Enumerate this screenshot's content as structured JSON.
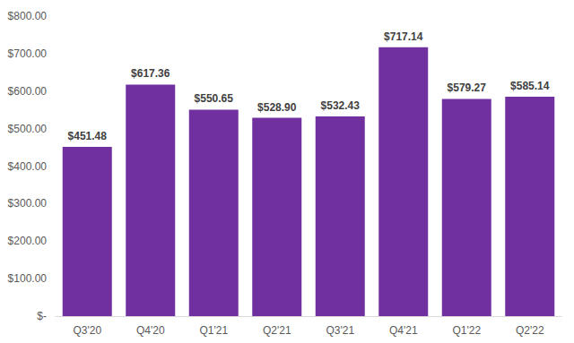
{
  "chart_data": {
    "type": "bar",
    "categories": [
      "Q3'20",
      "Q4'20",
      "Q1'21",
      "Q2'21",
      "Q3'21",
      "Q4'21",
      "Q1'22",
      "Q2'22"
    ],
    "values": [
      451.48,
      617.36,
      550.65,
      528.9,
      532.43,
      717.14,
      579.27,
      585.14
    ],
    "value_labels": [
      "$451.48",
      "$617.36",
      "$550.65",
      "$528.90",
      "$532.43",
      "$717.14",
      "$579.27",
      "$585.14"
    ],
    "color": "#7030a0",
    "ylim": [
      0,
      800
    ],
    "yticks": [
      {
        "value": 0,
        "label": "$-"
      },
      {
        "value": 100,
        "label": "$100.00"
      },
      {
        "value": 200,
        "label": "$200.00"
      },
      {
        "value": 300,
        "label": "$300.00"
      },
      {
        "value": 400,
        "label": "$400.00"
      },
      {
        "value": 500,
        "label": "$500.00"
      },
      {
        "value": 600,
        "label": "$600.00"
      },
      {
        "value": 700,
        "label": "$700.00"
      },
      {
        "value": 800,
        "label": "$800.00"
      }
    ],
    "grid": false,
    "data_labels": true
  }
}
